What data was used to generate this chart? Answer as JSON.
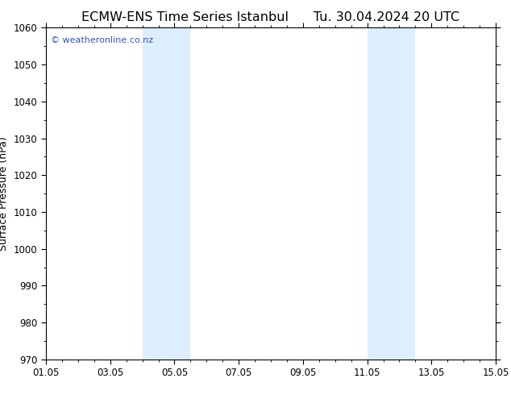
{
  "title": "ECMW-ENS Time Series Istanbul      Tu. 30.04.2024 20 UTC",
  "ylabel": "Surface Pressure (hPa)",
  "ylim": [
    970,
    1060
  ],
  "yticks": [
    970,
    980,
    990,
    1000,
    1010,
    1020,
    1030,
    1040,
    1050,
    1060
  ],
  "xlim": [
    0,
    14
  ],
  "xtick_positions": [
    0,
    2,
    4,
    6,
    8,
    10,
    12,
    14
  ],
  "xtick_labels": [
    "01.05",
    "03.05",
    "05.05",
    "07.05",
    "09.05",
    "11.05",
    "13.05",
    "15.05"
  ],
  "shaded_bands": [
    {
      "xmin": 3.0,
      "xmax": 4.5
    },
    {
      "xmin": 10.0,
      "xmax": 11.5
    }
  ],
  "band_color": "#ddeeff",
  "bg_color": "#ffffff",
  "axes_bg_color": "#ffffff",
  "copyright_text": "© weatheronline.co.nz",
  "copyright_color": "#3355bb",
  "title_fontsize": 11.5,
  "label_fontsize": 9,
  "tick_fontsize": 8.5
}
